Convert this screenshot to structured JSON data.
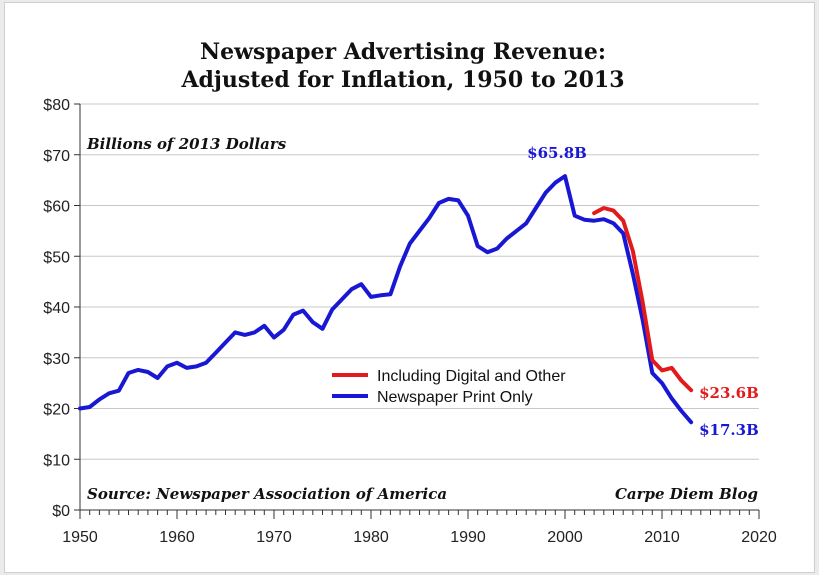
{
  "chart_data": {
    "type": "line",
    "title": [
      "Newspaper Advertising Revenue:",
      "Adjusted for Inflation, 1950 to 2013"
    ],
    "units_note": "Billions of 2013 Dollars",
    "source": "Source: Newspaper Association of America",
    "credit": "Carpe Diem Blog",
    "xlim": [
      1950,
      2020
    ],
    "ylim": [
      0,
      80
    ],
    "x_ticks": [
      1950,
      1960,
      1970,
      1980,
      1990,
      2000,
      2010,
      2020
    ],
    "x_tick_labels": [
      "1950",
      "1960",
      "1970",
      "1980",
      "1990",
      "2000",
      "2010",
      "2020"
    ],
    "y_ticks": [
      0,
      10,
      20,
      30,
      40,
      50,
      60,
      70,
      80
    ],
    "y_tick_labels": [
      "$0",
      "$10",
      "$20",
      "$30",
      "$40",
      "$50",
      "$60",
      "$70",
      "$80"
    ],
    "grid": "horizontal",
    "legend_position": "center-right",
    "series": [
      {
        "name": "Including Digital and Other",
        "color": "#e31a1c",
        "x": [
          2003,
          2004,
          2005,
          2006,
          2007,
          2008,
          2009,
          2010,
          2011,
          2012,
          2013
        ],
        "y": [
          58.5,
          59.5,
          59.0,
          57.0,
          51.0,
          41.0,
          29.5,
          27.5,
          28.0,
          25.5,
          23.6
        ]
      },
      {
        "name": "Newspaper Print Only",
        "color": "#1818d4",
        "x": [
          1950,
          1951,
          1952,
          1953,
          1954,
          1955,
          1956,
          1957,
          1958,
          1959,
          1960,
          1961,
          1962,
          1963,
          1964,
          1965,
          1966,
          1967,
          1968,
          1969,
          1970,
          1971,
          1972,
          1973,
          1974,
          1975,
          1976,
          1977,
          1978,
          1979,
          1980,
          1981,
          1982,
          1983,
          1984,
          1985,
          1986,
          1987,
          1988,
          1989,
          1990,
          1991,
          1992,
          1993,
          1994,
          1995,
          1996,
          1997,
          1998,
          1999,
          2000,
          2001,
          2002,
          2003,
          2004,
          2005,
          2006,
          2007,
          2008,
          2009,
          2010,
          2011,
          2012,
          2013
        ],
        "y": [
          20.0,
          20.3,
          21.8,
          23.0,
          23.5,
          27.0,
          27.6,
          27.2,
          26.0,
          28.3,
          29.0,
          28.0,
          28.3,
          29.0,
          31.0,
          33.0,
          35.0,
          34.5,
          35.0,
          36.3,
          34.0,
          35.5,
          38.5,
          39.3,
          37.0,
          35.7,
          39.5,
          41.5,
          43.5,
          44.5,
          42.0,
          42.3,
          42.5,
          48.0,
          52.5,
          55.0,
          57.5,
          60.5,
          61.3,
          61.0,
          58.0,
          52.0,
          50.8,
          51.5,
          53.5,
          55.0,
          56.5,
          59.5,
          62.5,
          64.5,
          65.8,
          58.0,
          57.2,
          57.0,
          57.3,
          56.5,
          54.5,
          46.5,
          37.5,
          27.0,
          25.0,
          22.0,
          19.5,
          17.3
        ]
      }
    ],
    "annotations": [
      {
        "text": "$65.8B",
        "x": 2000,
        "y": 65.8,
        "color": "#1818d4"
      },
      {
        "text": "$23.6B",
        "x": 2013,
        "y": 23.6,
        "color": "#e31a1c"
      },
      {
        "text": "$17.3B",
        "x": 2013,
        "y": 17.3,
        "color": "#1818d4"
      }
    ]
  }
}
